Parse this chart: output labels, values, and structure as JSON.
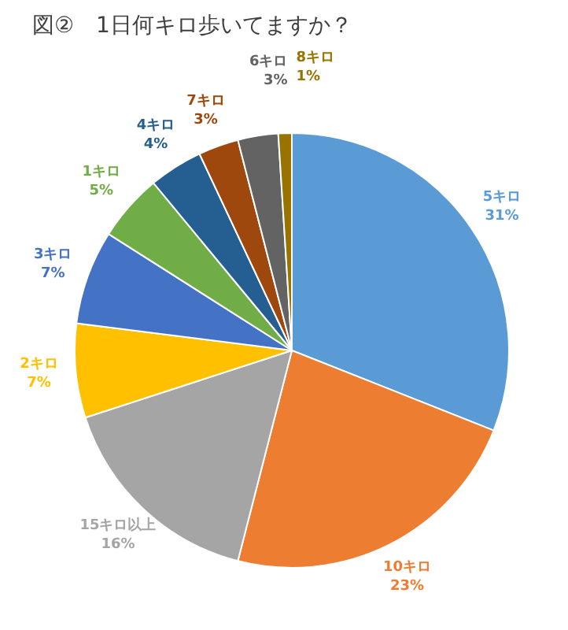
{
  "chart_data": {
    "type": "pie",
    "title": "図②　1日何キロ歩いてますか？",
    "categories": [
      "5キロ",
      "10キロ",
      "15キロ以上",
      "2キロ",
      "3キロ",
      "1キロ",
      "4キロ",
      "7キロ",
      "6キロ",
      "8キロ"
    ],
    "values": [
      31,
      23,
      16,
      7,
      7,
      5,
      4,
      3,
      3,
      1
    ],
    "value_labels": [
      "31%",
      "23%",
      "16%",
      "7%",
      "7%",
      "5%",
      "4%",
      "3%",
      "3%",
      "1%"
    ],
    "colors": [
      "#5b9bd5",
      "#ed7d31",
      "#a5a5a5",
      "#ffc000",
      "#4472c4",
      "#70ad47",
      "#255e91",
      "#9e480e",
      "#636363",
      "#997300"
    ]
  }
}
